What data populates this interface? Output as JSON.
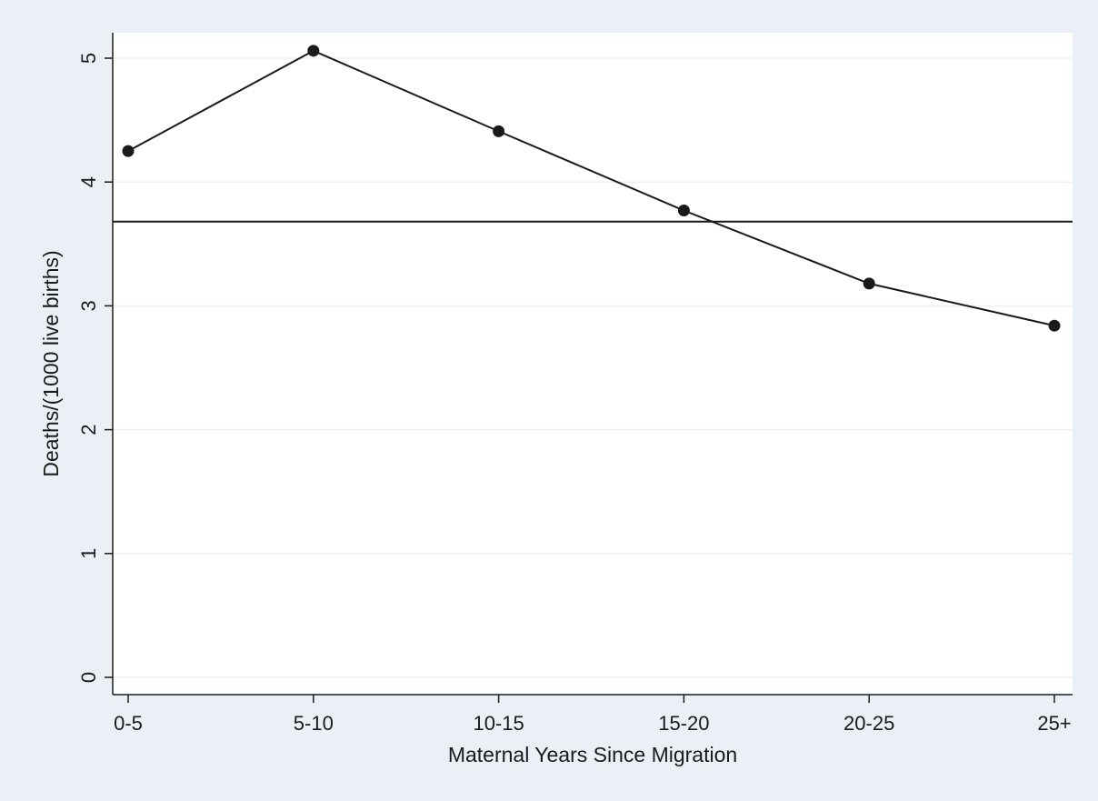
{
  "chart_data": {
    "type": "line",
    "title": "",
    "xlabel": "Maternal Years Since Migration",
    "ylabel": "Deaths/(1000 live births)",
    "categories": [
      "0-5",
      "5-10",
      "10-15",
      "15-20",
      "20-25",
      "25+"
    ],
    "series": [
      {
        "values": [
          4.25,
          5.06,
          4.41,
          3.77,
          3.18,
          2.84
        ]
      }
    ],
    "reference_line": 3.68,
    "ylim": [
      0,
      5
    ],
    "yticks": [
      0,
      1,
      2,
      3,
      4,
      5
    ],
    "grid": true,
    "colors": {
      "outer_background": "#eaf0f5",
      "plot_background": "#ffffff",
      "grid": "#eaf0f5",
      "line": "#1a1a1a"
    }
  }
}
